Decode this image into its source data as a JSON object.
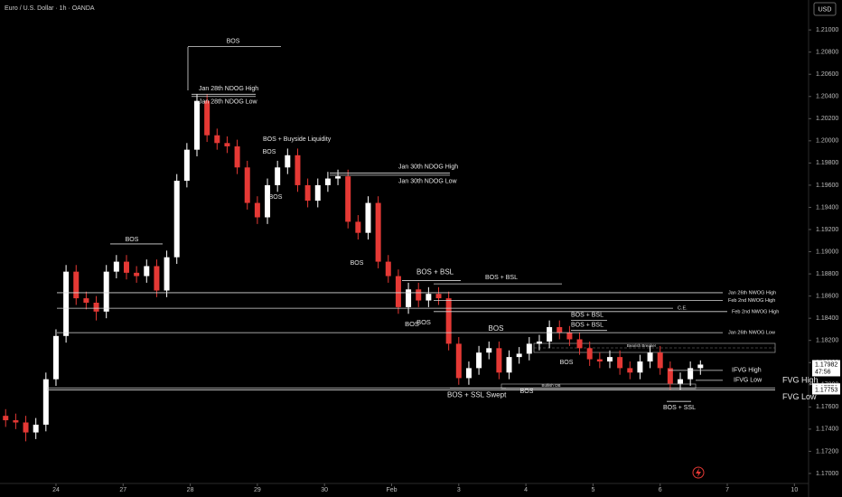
{
  "chart_data": {
    "type": "candlestick",
    "title": "Euro / U.S. Dollar · 1h · OANDA",
    "currency": "USD",
    "up_color": "#ffffff",
    "down_color": "#e53935",
    "x": [
      -0.75,
      -0.6,
      -0.45,
      -0.3,
      -0.15,
      0,
      0.15,
      0.3,
      0.45,
      0.6,
      0.75,
      0.9,
      1.05,
      1.2,
      1.35,
      1.5,
      1.65,
      1.8,
      1.95,
      2.1,
      2.25,
      2.4,
      2.55,
      2.7,
      2.85,
      3,
      3.15,
      3.3,
      3.45,
      3.6,
      3.75,
      3.9,
      4.05,
      4.2,
      4.35,
      4.5,
      4.65,
      4.8,
      4.95,
      5.1,
      5.25,
      5.4,
      5.55,
      5.7,
      5.85,
      6,
      6.15,
      6.3,
      6.45,
      6.6,
      6.75,
      6.9,
      7.05,
      7.2,
      7.35,
      7.5,
      7.65,
      7.8,
      7.95,
      8.1,
      8.25,
      8.4,
      8.55,
      8.7,
      8.85,
      9,
      9.15,
      9.3,
      9.45,
      9.6
    ],
    "open": [
      1.1752,
      1.1748,
      1.1746,
      1.1737,
      1.1744,
      1.1785,
      1.1824,
      1.1882,
      1.1858,
      1.1854,
      1.1846,
      1.1882,
      1.1891,
      1.1881,
      1.1878,
      1.1887,
      1.1865,
      1.1895,
      1.1964,
      1.1992,
      1.2036,
      1.2005,
      1.1998,
      1.1995,
      1.1976,
      1.1944,
      1.1931,
      1.196,
      1.1976,
      1.1987,
      1.196,
      1.1946,
      1.196,
      1.1966,
      1.1968,
      1.1927,
      1.1917,
      1.1944,
      1.1891,
      1.1878,
      1.185,
      1.1866,
      1.1856,
      1.1862,
      1.1858,
      1.1817,
      1.1786,
      1.1795,
      1.1809,
      1.1813,
      1.1791,
      1.1805,
      1.1808,
      1.1817,
      1.1819,
      1.1832,
      1.1827,
      1.1821,
      1.1813,
      1.1803,
      1.1801,
      1.1805,
      1.1795,
      1.1791,
      1.1801,
      1.1809,
      1.1795,
      1.1781,
      1.1785,
      1.1795
    ],
    "high": [
      1.1758,
      1.1754,
      1.1752,
      1.175,
      1.1791,
      1.183,
      1.1888,
      1.1888,
      1.1864,
      1.186,
      1.1888,
      1.1897,
      1.1897,
      1.1887,
      1.1893,
      1.1893,
      1.1901,
      1.197,
      1.1998,
      1.2042,
      1.2042,
      1.2011,
      1.2004,
      1.2001,
      1.1982,
      1.195,
      1.1966,
      1.1982,
      1.1993,
      1.1993,
      1.1966,
      1.1966,
      1.1972,
      1.1974,
      1.1974,
      1.1933,
      1.195,
      1.195,
      1.1897,
      1.1884,
      1.1872,
      1.1872,
      1.1868,
      1.1868,
      1.1864,
      1.1823,
      1.1801,
      1.1815,
      1.1819,
      1.1819,
      1.1811,
      1.1814,
      1.1823,
      1.1825,
      1.1838,
      1.1838,
      1.1833,
      1.1827,
      1.1819,
      1.1809,
      1.1811,
      1.1811,
      1.1801,
      1.1807,
      1.1815,
      1.1815,
      1.1801,
      1.1791,
      1.1801,
      1.1802
    ],
    "low": [
      1.1742,
      1.174,
      1.1729,
      1.1731,
      1.1738,
      1.1779,
      1.1818,
      1.1852,
      1.1848,
      1.1838,
      1.184,
      1.1876,
      1.1875,
      1.1872,
      1.1872,
      1.1859,
      1.1859,
      1.1889,
      1.1958,
      1.1986,
      1.1999,
      1.1992,
      1.1989,
      1.197,
      1.1938,
      1.1925,
      1.1925,
      1.1954,
      1.197,
      1.1954,
      1.194,
      1.194,
      1.1954,
      1.196,
      1.1921,
      1.1911,
      1.1911,
      1.1885,
      1.1872,
      1.1844,
      1.1844,
      1.185,
      1.185,
      1.1852,
      1.1811,
      1.178,
      1.178,
      1.1789,
      1.1803,
      1.1785,
      1.1785,
      1.1799,
      1.1802,
      1.1811,
      1.1813,
      1.1821,
      1.1815,
      1.1807,
      1.1797,
      1.1795,
      1.1795,
      1.1789,
      1.1785,
      1.1785,
      1.1795,
      1.1789,
      1.1775,
      1.1775,
      1.1779,
      1.1789
    ],
    "close": [
      1.1748,
      1.1746,
      1.1737,
      1.1744,
      1.1785,
      1.1824,
      1.1882,
      1.1858,
      1.1854,
      1.1846,
      1.1882,
      1.1891,
      1.1881,
      1.1878,
      1.1887,
      1.1865,
      1.1895,
      1.1964,
      1.1992,
      1.2036,
      1.2005,
      1.1998,
      1.1995,
      1.1976,
      1.1944,
      1.1931,
      1.196,
      1.1976,
      1.1987,
      1.196,
      1.1946,
      1.196,
      1.1966,
      1.1968,
      1.1927,
      1.1917,
      1.1944,
      1.1891,
      1.1878,
      1.185,
      1.1866,
      1.1856,
      1.1862,
      1.1858,
      1.1817,
      1.1786,
      1.1795,
      1.1809,
      1.1813,
      1.1791,
      1.1805,
      1.1808,
      1.1817,
      1.1819,
      1.1832,
      1.1827,
      1.1821,
      1.1813,
      1.1803,
      1.1801,
      1.1805,
      1.1795,
      1.1791,
      1.1801,
      1.1809,
      1.1795,
      1.1781,
      1.1785,
      1.1795,
      1.17982
    ],
    "xlim": [
      -0.834,
      11.211
    ],
    "xticks": [
      {
        "value": 0,
        "label": "24"
      },
      {
        "value": 1,
        "label": "27"
      },
      {
        "value": 2,
        "label": "28"
      },
      {
        "value": 3,
        "label": "29"
      },
      {
        "value": 4,
        "label": "30"
      },
      {
        "value": 5,
        "label": "Feb"
      },
      {
        "value": 6,
        "label": "3"
      },
      {
        "value": 7,
        "label": "4"
      },
      {
        "value": 8,
        "label": "5"
      },
      {
        "value": 9,
        "label": "6"
      },
      {
        "value": 10,
        "label": "7"
      },
      {
        "value": 11,
        "label": "10"
      }
    ],
    "ylim": [
      1.1691,
      1.2127
    ],
    "yticks": [
      {
        "value": 1.17,
        "label": "1.17000"
      },
      {
        "value": 1.172,
        "label": "1.17200"
      },
      {
        "value": 1.174,
        "label": "1.17400"
      },
      {
        "value": 1.176,
        "label": "1.17600"
      },
      {
        "value": 1.178,
        "label": "1.17800"
      },
      {
        "value": 1.18,
        "label": "1.18000"
      },
      {
        "value": 1.182,
        "label": "1.18200"
      },
      {
        "value": 1.184,
        "label": "1.18400"
      },
      {
        "value": 1.186,
        "label": "1.18600"
      },
      {
        "value": 1.188,
        "label": "1.18800"
      },
      {
        "value": 1.19,
        "label": "1.19000"
      },
      {
        "value": 1.192,
        "label": "1.19200"
      },
      {
        "value": 1.194,
        "label": "1.19400"
      },
      {
        "value": 1.196,
        "label": "1.19600"
      },
      {
        "value": 1.198,
        "label": "1.19800"
      },
      {
        "value": 1.2,
        "label": "1.20000"
      },
      {
        "value": 1.202,
        "label": "1.20200"
      },
      {
        "value": 1.204,
        "label": "1.20400"
      },
      {
        "value": 1.206,
        "label": "1.20600"
      },
      {
        "value": 1.208,
        "label": "1.20800"
      },
      {
        "value": 1.21,
        "label": "1.21000"
      }
    ],
    "levels": [
      {
        "label": "BOS",
        "price": 1.2085
      },
      {
        "label": "Jan 28th NDOG High",
        "price": 1.2042
      },
      {
        "label": "Jan 28th NDOG Low",
        "price": 1.204
      },
      {
        "label": "Jan 30th NDOG High",
        "price": 1.1971
      },
      {
        "label": "Jan 30th NDOG Low",
        "price": 1.1969
      },
      {
        "label": "BOS",
        "price": 1.1907
      },
      {
        "label": "BOS + BSL",
        "price": 1.1874
      },
      {
        "label": "BOS + BSL",
        "price": 1.1871
      },
      {
        "label": "Jan 26th NWOG High",
        "price": 1.1863
      },
      {
        "label": "Feb 2nd NWOG High",
        "price": 1.1856
      },
      {
        "label": "C.E.",
        "price": 1.1849
      },
      {
        "label": "Feb 2nd NWOG High",
        "price": 1.1846
      },
      {
        "label": "Jan 26th NWOG Low",
        "price": 1.1827
      },
      {
        "label": "BOS + BSL",
        "price": 1.1838
      },
      {
        "label": "BOS + BSL",
        "price": 1.1829
      },
      {
        "label": "IFVG High",
        "price": 1.1793
      },
      {
        "label": "IFVG Low",
        "price": 1.1784
      },
      {
        "label": "FVG High",
        "price": 1.17772
      },
      {
        "label": "FVG Low",
        "price": 1.17753
      },
      {
        "label": "BOS + SSL",
        "price": 1.1765
      },
      {
        "label": "BOS + SSL Swept",
        "price": 1.1777
      }
    ],
    "notes": [
      "BOS + Buyside Liquidity",
      "BOS",
      "BOS",
      "BOS",
      "BOS",
      "BOS",
      "BOS",
      "BOS",
      "BOS",
      "Bearish Breaker",
      "Bullish OB"
    ],
    "price_badges": [
      {
        "price": 1.17982,
        "countdown": "47:56"
      },
      {
        "price": 1.17772
      },
      {
        "price": 1.17753
      }
    ]
  }
}
